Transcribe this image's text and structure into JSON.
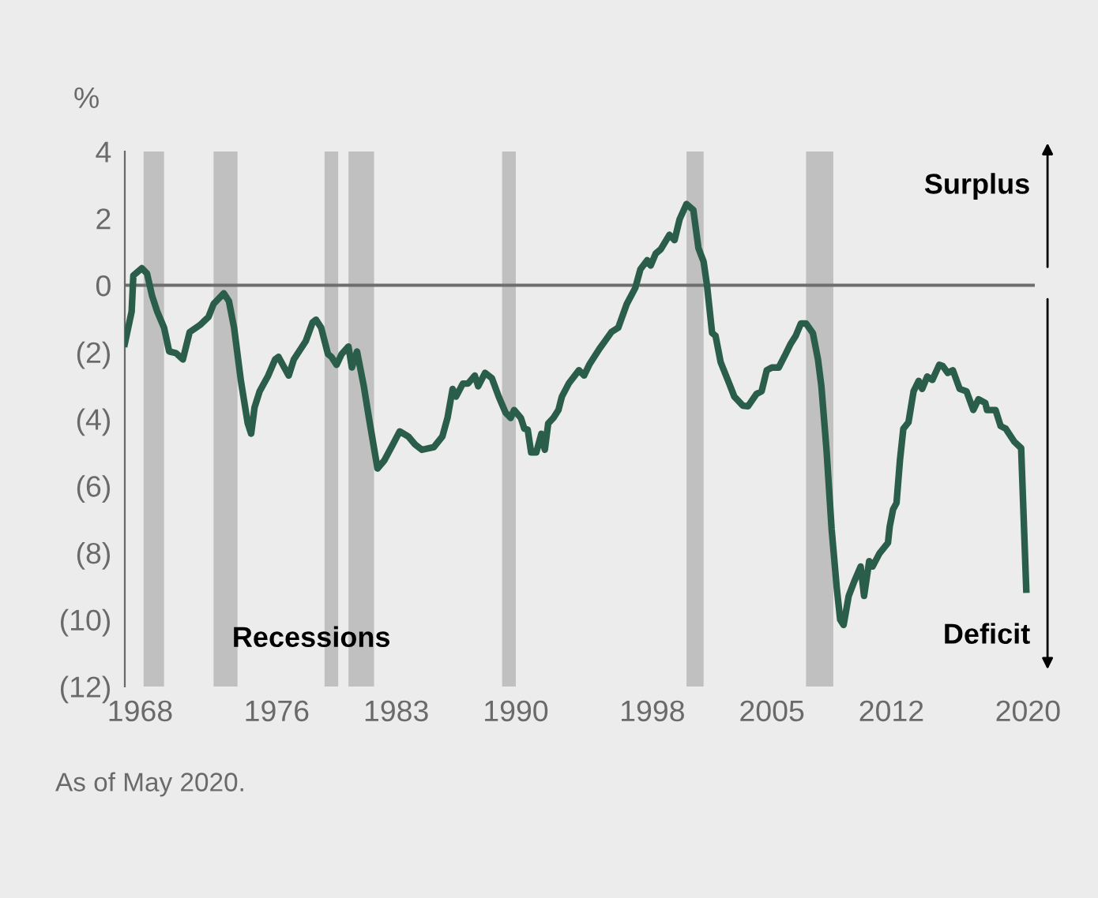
{
  "chart_data": {
    "type": "line",
    "ylabel": "%",
    "annotations": [
      "Recessions",
      "Surplus",
      "Deficit",
      "As of May 2020."
    ],
    "x": [
      1967.1,
      1967.5,
      1967.6,
      1968.1,
      1968.4,
      1968.7,
      1969.0,
      1969.4,
      1969.7,
      1970.1,
      1970.5,
      1970.9,
      1971.5,
      1972.0,
      1972.3,
      1972.9,
      1973.2,
      1973.5,
      1973.9,
      1974.3,
      1974.5,
      1974.7,
      1975.0,
      1975.5,
      1975.9,
      1976.1,
      1976.7,
      1977.0,
      1977.7,
      1978.1,
      1978.3,
      1978.6,
      1979.0,
      1979.2,
      1979.5,
      1979.8,
      1980.2,
      1980.4,
      1980.7,
      1981.1,
      1981.4,
      1981.9,
      1982.3,
      1982.8,
      1983.2,
      1983.7,
      1984.1,
      1984.5,
      1985.2,
      1985.7,
      1986.0,
      1986.3,
      1986.5,
      1986.9,
      1987.2,
      1987.6,
      1987.8,
      1988.2,
      1988.6,
      1989.0,
      1989.4,
      1989.7,
      1989.9,
      1990.3,
      1990.5,
      1990.7,
      1990.9,
      1991.2,
      1991.5,
      1991.7,
      1991.9,
      1992.2,
      1992.5,
      1992.7,
      1993.1,
      1993.7,
      1994.0,
      1994.3,
      1994.9,
      1995.6,
      1996.0,
      1996.5,
      1997.0,
      1997.3,
      1997.7,
      1997.9,
      1998.2,
      1998.5,
      1999.0,
      1999.3,
      1999.6,
      2000.0,
      2000.4,
      2000.7,
      2001.0,
      2001.2,
      2001.5,
      2001.7,
      2002.0,
      2002.5,
      2002.8,
      2003.3,
      2003.6,
      2004.1,
      2004.4,
      2004.7,
      2005.0,
      2005.4,
      2005.8,
      2006.1,
      2006.4,
      2006.7,
      2007.0,
      2007.4,
      2007.7,
      2007.9,
      2008.2,
      2008.5,
      2008.8,
      2009.0,
      2009.2,
      2009.5,
      2009.8,
      2010.2,
      2010.4,
      2010.7,
      2010.9,
      2011.3,
      2011.8,
      2011.9,
      2012.1,
      2012.3,
      2012.5,
      2012.7,
      2013.0,
      2013.3,
      2013.6,
      2013.8,
      2014.1,
      2014.4,
      2014.8,
      2015.0,
      2015.3,
      2015.6,
      2016.0,
      2016.4,
      2016.8,
      2017.1,
      2017.5,
      2017.6,
      2018.1,
      2018.4,
      2018.7,
      2019.2,
      2019.6,
      2019.9
    ],
    "series": [
      {
        "color": "#2a5e4b",
        "values": [
          -1.75,
          -0.79,
          0.29,
          0.51,
          0.35,
          -0.32,
          -0.79,
          -1.27,
          -1.98,
          -2.03,
          -2.22,
          -1.4,
          -1.19,
          -0.95,
          -0.56,
          -0.24,
          -0.48,
          -1.27,
          -2.86,
          -4.13,
          -4.44,
          -3.65,
          -3.17,
          -2.7,
          -2.22,
          -2.14,
          -2.7,
          -2.22,
          -1.67,
          -1.11,
          -1.03,
          -1.27,
          -2.06,
          -2.14,
          -2.38,
          -2.06,
          -1.83,
          -2.46,
          -1.98,
          -3.02,
          -3.97,
          -5.48,
          -5.24,
          -4.76,
          -4.37,
          -4.52,
          -4.76,
          -4.92,
          -4.84,
          -4.52,
          -3.97,
          -3.1,
          -3.33,
          -2.94,
          -2.94,
          -2.7,
          -3.02,
          -2.62,
          -2.78,
          -3.33,
          -3.81,
          -3.97,
          -3.73,
          -3.97,
          -4.29,
          -4.32,
          -5.0,
          -5.0,
          -4.44,
          -4.92,
          -4.13,
          -3.97,
          -3.73,
          -3.33,
          -2.94,
          -2.54,
          -2.7,
          -2.38,
          -1.9,
          -1.4,
          -1.27,
          -0.56,
          -0.08,
          0.48,
          0.75,
          0.59,
          0.95,
          1.08,
          1.51,
          1.35,
          1.98,
          2.43,
          2.25,
          1.11,
          0.71,
          0.0,
          -1.43,
          -1.51,
          -2.3,
          -2.94,
          -3.33,
          -3.6,
          -3.62,
          -3.25,
          -3.17,
          -2.54,
          -2.46,
          -2.46,
          -2.06,
          -1.75,
          -1.51,
          -1.14,
          -1.14,
          -1.43,
          -2.22,
          -3.02,
          -4.92,
          -7.3,
          -9.05,
          -10.0,
          -10.16,
          -9.29,
          -8.89,
          -8.41,
          -9.29,
          -8.25,
          -8.41,
          -8.02,
          -7.7,
          -7.22,
          -6.7,
          -6.51,
          -5.24,
          -4.29,
          -4.1,
          -3.17,
          -2.86,
          -3.1,
          -2.73,
          -2.83,
          -2.38,
          -2.41,
          -2.62,
          -2.54,
          -3.1,
          -3.17,
          -3.73,
          -3.41,
          -3.52,
          -3.73,
          -3.73,
          -4.21,
          -4.29,
          -4.68,
          -4.87,
          -9.1
        ]
      }
    ],
    "xlim": [
      1967.1,
      2020.4
    ],
    "xticks": [
      1968,
      1976,
      1983,
      1990,
      1998,
      2005,
      2012,
      2020
    ],
    "ylim": [
      -12,
      4
    ],
    "yticks": [
      4,
      2,
      0,
      {
        "value": -2,
        "label": "(2)"
      },
      {
        "value": -4,
        "label": "(4)"
      },
      {
        "value": -6,
        "label": "(6)"
      },
      {
        "value": -8,
        "label": "(8)"
      },
      {
        "value": -10,
        "label": "(10)"
      },
      {
        "value": -12,
        "label": "(12)"
      }
    ],
    "ref_lines": [
      {
        "axis": "y",
        "value": 0,
        "color": "#6e6e6e"
      }
    ],
    "bands": [
      {
        "axis": "x",
        "from": 1968.2,
        "to": 1969.4,
        "color": "#c0c0c0"
      },
      {
        "axis": "x",
        "from": 1972.3,
        "to": 1973.7,
        "color": "#c0c0c0"
      },
      {
        "axis": "x",
        "from": 1978.8,
        "to": 1979.6,
        "color": "#c0c0c0"
      },
      {
        "axis": "x",
        "from": 1980.2,
        "to": 1981.7,
        "color": "#c0c0c0"
      },
      {
        "axis": "x",
        "from": 1989.2,
        "to": 1990.0,
        "color": "#c0c0c0"
      },
      {
        "axis": "x",
        "from": 2000.0,
        "to": 2001.0,
        "color": "#c0c0c0"
      },
      {
        "axis": "x",
        "from": 2007.0,
        "to": 2008.6,
        "color": "#c0c0c0"
      }
    ],
    "grid": false,
    "legend": false,
    "marker": "none",
    "line_style": "solid"
  }
}
